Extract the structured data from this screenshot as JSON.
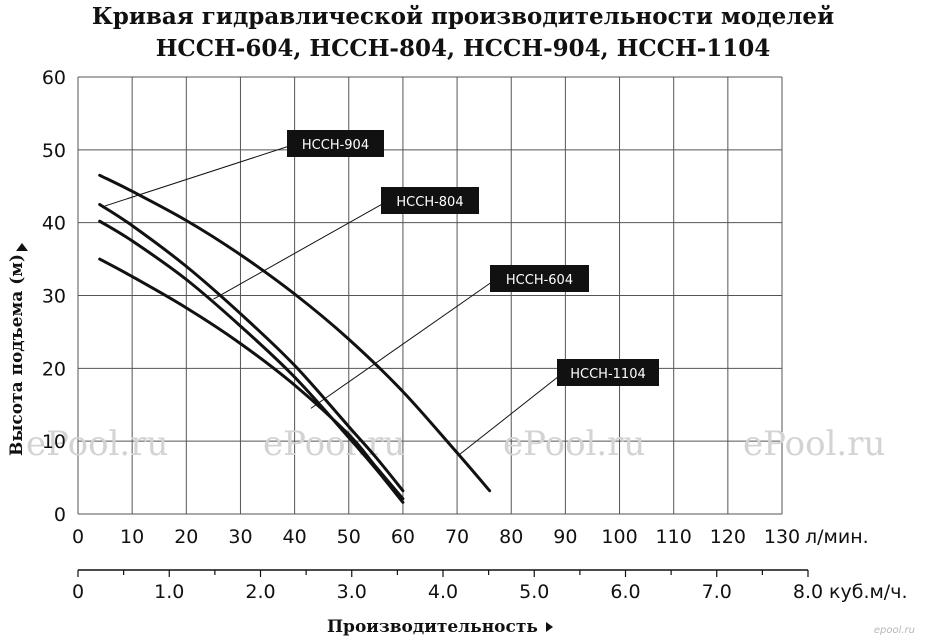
{
  "chart_data": {
    "type": "line",
    "title": "Кривая гидравлической производительности моделей",
    "subtitle": "НССН-604, НССН-804, НССН-904, НССН-1104",
    "xlabel": "Производительность",
    "ylabel": "Высота подъема (м)",
    "xlim": [
      0,
      130
    ],
    "ylim": [
      0,
      60
    ],
    "x_unit": "л/мин.",
    "x_ticks": [
      "0",
      "10",
      "20",
      "30",
      "40",
      "50",
      "60",
      "70",
      "80",
      "90",
      "100",
      "110",
      "120",
      "130"
    ],
    "y_ticks": [
      "0",
      "10",
      "20",
      "30",
      "40",
      "50",
      "60"
    ],
    "secondary_x": {
      "unit": "куб.м/ч.",
      "lim": [
        0,
        8.0
      ],
      "ticks": [
        "0",
        "1.0",
        "2.0",
        "3.0",
        "4.0",
        "5.0",
        "6.0",
        "7.0",
        "8.0"
      ]
    },
    "grid": true,
    "series": [
      {
        "name": "НССН-604",
        "x": [
          4,
          10,
          20,
          30,
          40,
          50,
          55,
          60
        ],
        "y": [
          40.2,
          37.5,
          32.2,
          25.8,
          18.8,
          10.5,
          6.2,
          1.6
        ],
        "color": "#111111"
      },
      {
        "name": "НССН-804",
        "x": [
          4,
          10,
          20,
          30,
          40,
          50,
          55,
          60
        ],
        "y": [
          35,
          32.6,
          28.3,
          23.4,
          17.7,
          10.9,
          6.5,
          2.1
        ],
        "color": "#111111"
      },
      {
        "name": "НССН-904",
        "x": [
          4,
          10,
          20,
          30,
          40,
          50,
          55,
          60
        ],
        "y": [
          42.5,
          39.6,
          34.0,
          27.5,
          20.4,
          12.0,
          7.8,
          3.2
        ],
        "color": "#111111"
      },
      {
        "name": "НССН-1104",
        "x": [
          4,
          10,
          20,
          30,
          40,
          50,
          60,
          70,
          76
        ],
        "y": [
          46.5,
          44.3,
          40.3,
          35.6,
          30.2,
          24.0,
          16.8,
          8.4,
          3.2
        ],
        "color": "#111111"
      }
    ],
    "callouts": [
      {
        "label": "НССН-904",
        "anchor_x": 5,
        "anchor_y": 42.3
      },
      {
        "label": "НССН-804",
        "anchor_x": 25,
        "anchor_y": 29.5
      },
      {
        "label": "НССН-604",
        "anchor_x": 43,
        "anchor_y": 14.5
      },
      {
        "label": "НССН-1104",
        "anchor_x": 70.5,
        "anchor_y": 8.2
      }
    ]
  },
  "watermark": "ePool.ru",
  "corner_mark": "epool.ru"
}
